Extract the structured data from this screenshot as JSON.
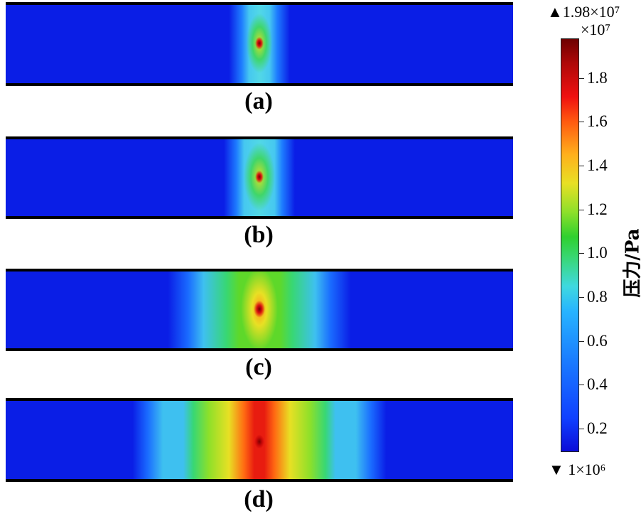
{
  "panels": [
    {
      "id": "a",
      "label": "(a)"
    },
    {
      "id": "b",
      "label": "(b)"
    },
    {
      "id": "c",
      "label": "(c)"
    },
    {
      "id": "d",
      "label": "(d)"
    }
  ],
  "colorbar": {
    "max_label": "▲1.98×10⁷",
    "exponent_label": "×10⁷",
    "min_label": "▼ 1×10⁶",
    "axis_label": "压力/Pa",
    "ticks": [
      "1.8",
      "1.6",
      "1.4",
      "1.2",
      "1.0",
      "0.8",
      "0.6",
      "0.4",
      "0.2"
    ],
    "colors": {
      "background_blue": "#0a1ee6",
      "peak_dark_red": "#6e0000",
      "red": "#f01010",
      "yellow": "#e8e024",
      "green": "#2fd02f",
      "cyan": "#3fd9e0"
    }
  }
}
